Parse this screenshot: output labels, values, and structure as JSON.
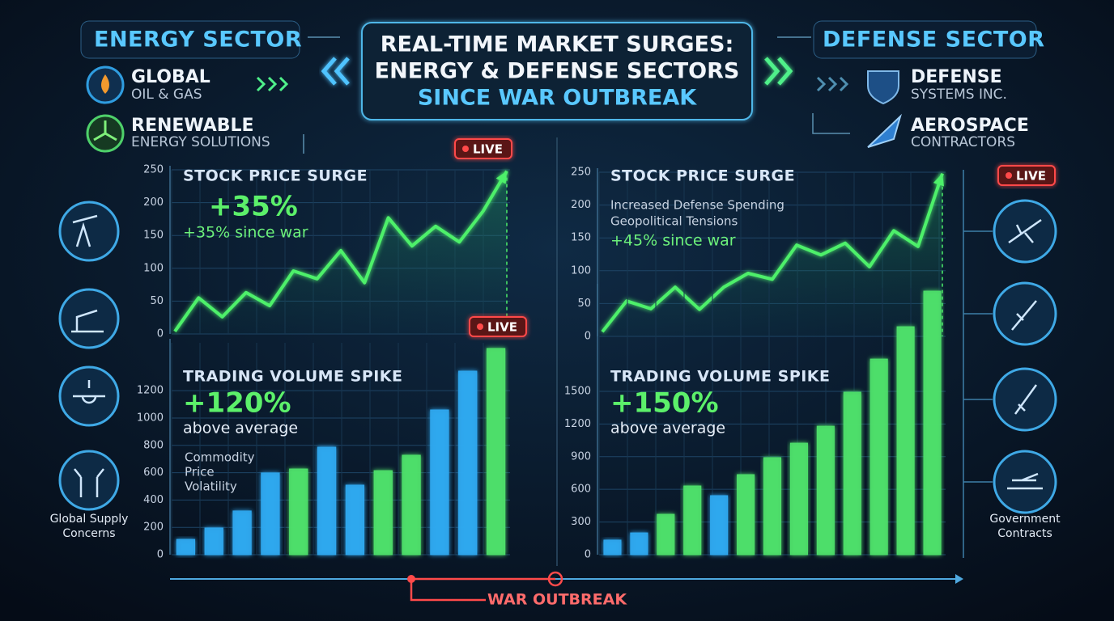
{
  "header": {
    "title_lines": [
      "REAL-TIME MARKET SURGES:",
      "ENERGY & DEFENSE SECTORS",
      "SINCE WAR OUTBREAK"
    ]
  },
  "left_panel": {
    "sector": "ENERGY SECTOR",
    "companies": [
      {
        "name": "GLOBAL",
        "detail": "OIL & GAS"
      },
      {
        "name": "RENEWABLE",
        "detail": "ENERGY SOLUTIONS"
      }
    ],
    "caption_lines": [
      "Global Supply",
      "Concerns"
    ]
  },
  "right_panel": {
    "sector": "DEFENSE SECTOR",
    "companies": [
      {
        "name": "DEFENSE",
        "detail": "SYSTEMS INC."
      },
      {
        "name": "AEROSPACE",
        "detail": "CONTRACTORS"
      }
    ],
    "caption_lines": [
      "Government",
      "Contracts"
    ]
  },
  "timeline": {
    "label": "WAR OUTBREAK"
  },
  "chart_data": [
    {
      "type": "line",
      "title": "STOCK PRICE SURGE",
      "headline": "+35%",
      "subline": "+35% since war",
      "badge": "LIVE",
      "color": "#4df06a",
      "values": [
        4,
        55,
        26,
        63,
        43,
        96,
        84,
        127,
        78,
        177,
        134,
        164,
        140,
        187,
        248
      ],
      "ylim": [
        0,
        250
      ],
      "yticks": [
        0,
        50,
        100,
        150,
        200,
        250
      ],
      "grid": true
    },
    {
      "type": "bar",
      "title": "TRADING VOLUME SPIKE",
      "headline": "+120%",
      "subline": "above average",
      "badge": "LIVE",
      "notes": [
        "Commodity",
        "Price",
        "Volatility"
      ],
      "values": [
        112,
        195,
        320,
        598,
        627,
        787,
        509,
        615,
        728,
        1059,
        1343,
        1509
      ],
      "colors": [
        "#2fa8f0",
        "#2fa8f0",
        "#2fa8f0",
        "#2fa8f0",
        "#4ee06a",
        "#2fa8f0",
        "#2fa8f0",
        "#4ee06a",
        "#4ee06a",
        "#2fa8f0",
        "#2fa8f0",
        "#4ee06a"
      ],
      "ylim": [
        0,
        1550
      ],
      "yticks": [
        0,
        200,
        400,
        600,
        800,
        1000,
        1200
      ],
      "grid": true
    },
    {
      "type": "line",
      "title": "STOCK PRICE SURGE",
      "subline": "+45% since war",
      "badge": "LIVE",
      "notes": [
        "Increased Defense Spending",
        "Geopolitical Tensions"
      ],
      "color": "#4df06a",
      "values": [
        7,
        54,
        42,
        75,
        41,
        75,
        96,
        87,
        139,
        124,
        142,
        106,
        161,
        137,
        248
      ],
      "ylim": [
        0,
        250
      ],
      "yticks": [
        0,
        50,
        100,
        150,
        200,
        250
      ],
      "grid": true
    },
    {
      "type": "bar",
      "title": "TRADING VOLUME SPIKE",
      "headline": "+150%",
      "subline": "above average",
      "values": [
        134,
        200,
        371,
        631,
        542,
        735,
        891,
        1024,
        1180,
        1492,
        1796,
        2093,
        2420
      ],
      "colors": [
        "#2fa8f0",
        "#2fa8f0",
        "#4ee06a",
        "#4ee06a",
        "#2fa8f0",
        "#4ee06a",
        "#4ee06a",
        "#4ee06a",
        "#4ee06a",
        "#4ee06a",
        "#4ee06a",
        "#4ee06a",
        "#4ee06a"
      ],
      "ylim": [
        0,
        2450
      ],
      "yticks": [
        0,
        300,
        600,
        900,
        1200,
        1500
      ],
      "grid": true
    }
  ]
}
